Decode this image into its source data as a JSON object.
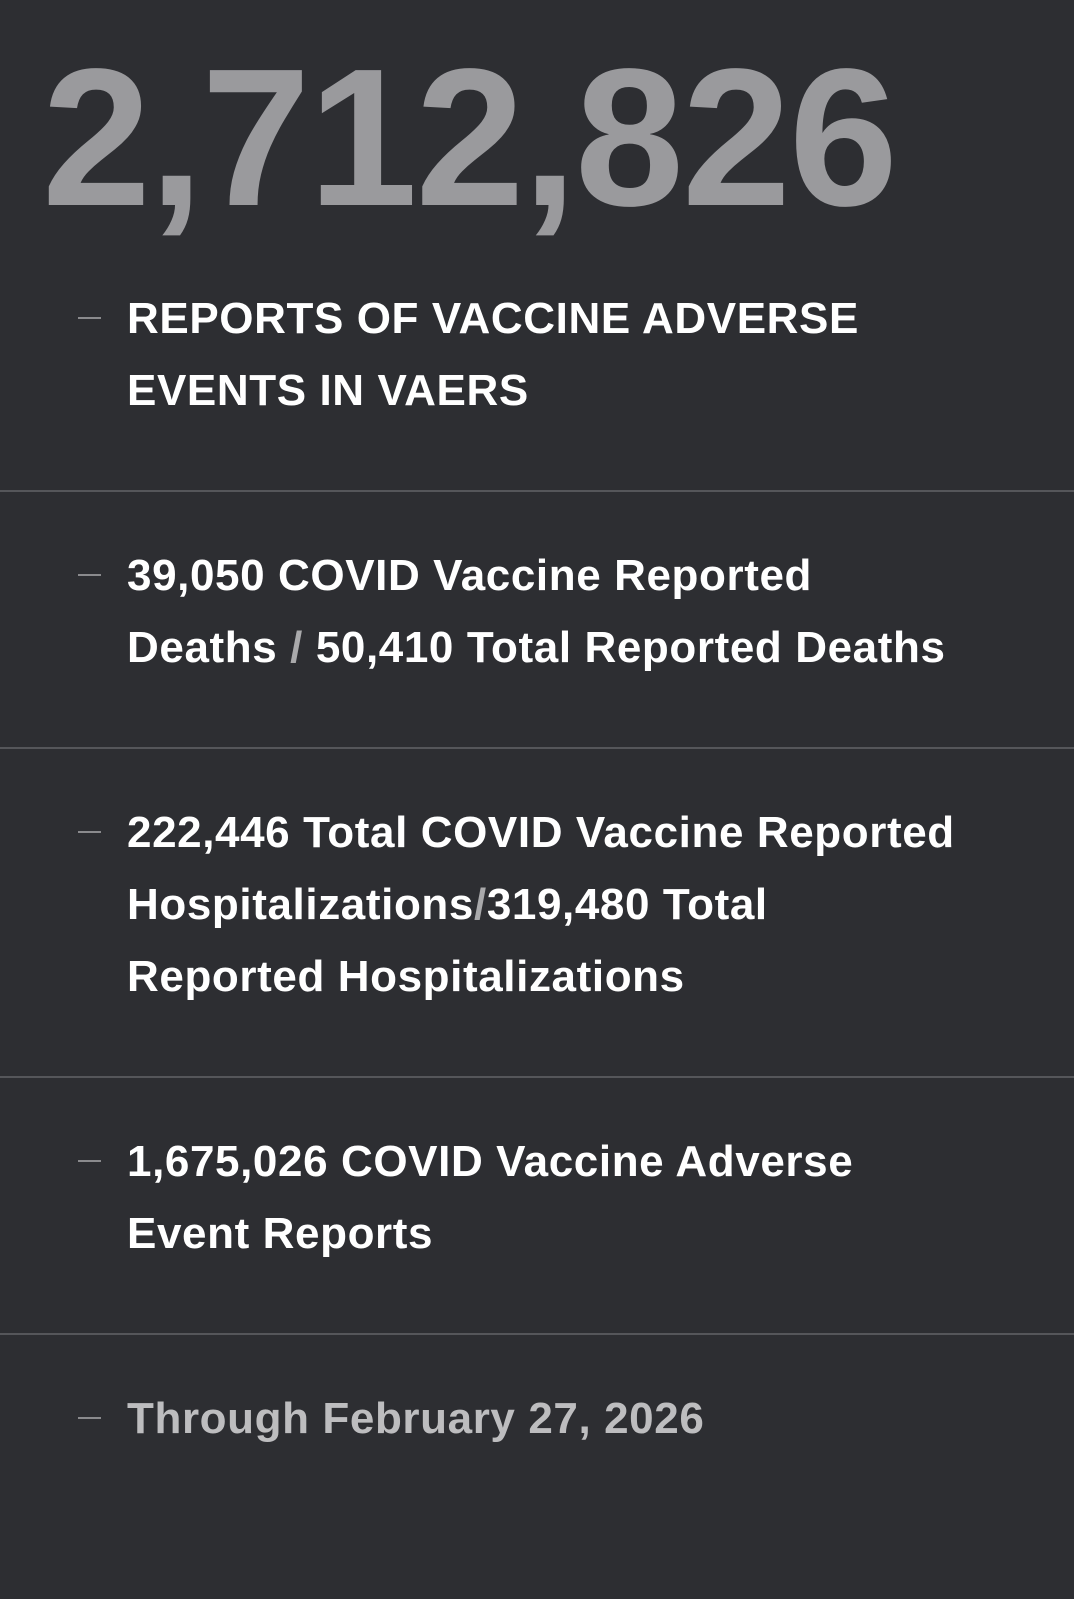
{
  "headline_count": "2,712,826",
  "items": [
    {
      "text": "REPORTS OF VACCINE ADVERSE EVENTS IN VAERS"
    },
    {
      "part1": "39,050 COVID Vaccine Reported Deaths ",
      "slash": " / ",
      "part2": "50,410 Total Reported Deaths"
    },
    {
      "part1": "222,446 Total COVID Vaccine Reported Hospitalizations",
      "slash": "/",
      "part2": "319,480 Total Reported Hospitalizations"
    },
    {
      "text": "1,675,026 COVID Vaccine Adverse Event Reports"
    },
    {
      "text": "Through February 27, 2026"
    }
  ],
  "colors": {
    "background": "#2d2e32",
    "headline": "#9a9a9d",
    "text": "#ffffff",
    "muted": "#bdbdbf"
  }
}
